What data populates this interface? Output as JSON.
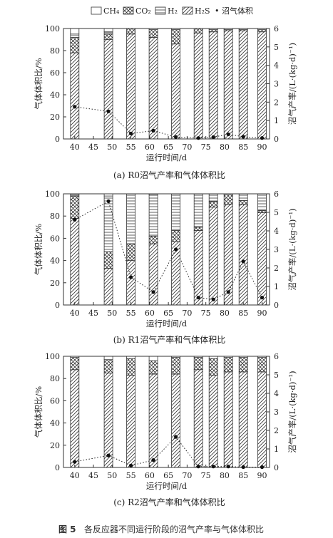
{
  "legend": {
    "items": [
      {
        "key": "ch4",
        "label": "CH₄",
        "pattern": "empty"
      },
      {
        "key": "co2",
        "label": "CO₂",
        "pattern": "cross"
      },
      {
        "key": "h2",
        "label": "H₂",
        "pattern": "horizontal"
      },
      {
        "key": "h2s",
        "label": "H₂S",
        "pattern": "diagonal"
      },
      {
        "key": "biogas",
        "label": "• 沼气体积",
        "pattern": "dot"
      }
    ]
  },
  "figure_caption": {
    "label": "图 5",
    "text": "各反应器不同运行阶段的沼气产率与气体体积比"
  },
  "chart_data": [
    {
      "type": "bar",
      "title": "(a) R0沼气产率和气体体积比",
      "xlabel": "运行时间/d",
      "ylabel": "气体体积比/%",
      "y2label": "沼气产率/(L·(kg·d)⁻¹)",
      "xlim": [
        37,
        92
      ],
      "ylim": [
        0,
        100
      ],
      "y2lim": [
        0,
        6
      ],
      "xticks": [
        40,
        45,
        50,
        55,
        60,
        65,
        70,
        75,
        80,
        85,
        90
      ],
      "yticks": [
        0,
        20,
        40,
        60,
        80,
        100
      ],
      "y2ticks": [
        0,
        1,
        2,
        3,
        4,
        5,
        6
      ],
      "x": [
        40,
        49,
        55,
        61,
        67,
        73,
        77,
        81,
        85,
        90
      ],
      "series": [
        {
          "key": "h2s",
          "values": [
            78,
            90,
            95,
            92,
            86,
            96,
            97,
            98,
            98,
            97
          ]
        },
        {
          "key": "co2",
          "values": [
            14,
            5,
            5,
            7,
            13,
            4,
            2,
            1,
            1,
            2
          ]
        },
        {
          "key": "h2",
          "values": [
            3,
            2,
            0,
            1,
            1,
            0,
            0,
            0,
            0,
            0
          ]
        },
        {
          "key": "ch4",
          "values": [
            5,
            3,
            0,
            0,
            0,
            0,
            1,
            1,
            1,
            1
          ]
        }
      ],
      "line": {
        "name": "沼气体积",
        "x": [
          40,
          49,
          55,
          61,
          67,
          73,
          77,
          81,
          85,
          90
        ],
        "values": [
          1.75,
          1.5,
          0.3,
          0.45,
          0.1,
          0.05,
          0.1,
          0.25,
          0.12,
          0.05
        ]
      }
    },
    {
      "type": "bar",
      "title": "(b) R1沼气产率和气体体积比",
      "xlabel": "运行时间/d",
      "ylabel": "气体体积比/%",
      "y2label": "沼气产率/(L·(kg·d)⁻¹)",
      "xlim": [
        37,
        92
      ],
      "ylim": [
        0,
        100
      ],
      "y2lim": [
        0,
        6
      ],
      "xticks": [
        40,
        45,
        50,
        55,
        60,
        65,
        70,
        75,
        80,
        85,
        90
      ],
      "yticks": [
        0,
        20,
        40,
        60,
        80,
        100
      ],
      "y2ticks": [
        0,
        1,
        2,
        3,
        4,
        5,
        6
      ],
      "x": [
        40,
        49,
        55,
        61,
        67,
        73,
        77,
        81,
        85,
        90
      ],
      "series": [
        {
          "key": "h2s",
          "values": [
            78,
            33,
            40,
            55,
            57,
            67,
            88,
            90,
            90,
            83
          ]
        },
        {
          "key": "co2",
          "values": [
            20,
            15,
            15,
            7,
            10,
            3,
            5,
            9,
            4,
            2
          ]
        },
        {
          "key": "h2",
          "values": [
            1,
            50,
            45,
            37,
            33,
            30,
            7,
            1,
            6,
            15
          ]
        },
        {
          "key": "ch4",
          "values": [
            1,
            2,
            0,
            1,
            0,
            0,
            0,
            0,
            0,
            0
          ]
        }
      ],
      "line": {
        "name": "沼气体积",
        "x": [
          40,
          49,
          55,
          61,
          67,
          73,
          77,
          81,
          85,
          90
        ],
        "values": [
          4.6,
          5.6,
          1.5,
          0.7,
          3.0,
          0.4,
          0.3,
          0.7,
          2.35,
          0.4
        ]
      }
    },
    {
      "type": "bar",
      "title": "(c) R2沼气产率和气体体积比",
      "xlabel": "运行时间/d",
      "ylabel": "气体体积比/%",
      "y2label": "沼气产率/(L·(kg·d)⁻¹)",
      "xlim": [
        37,
        92
      ],
      "ylim": [
        0,
        100
      ],
      "y2lim": [
        0,
        6
      ],
      "xticks": [
        40,
        45,
        50,
        55,
        60,
        65,
        70,
        75,
        80,
        85,
        90
      ],
      "yticks": [
        0,
        20,
        40,
        60,
        80,
        100
      ],
      "y2ticks": [
        0,
        1,
        2,
        3,
        4,
        5,
        6
      ],
      "x": [
        40,
        49,
        55,
        61,
        67,
        73,
        77,
        81,
        85,
        90
      ],
      "series": [
        {
          "key": "h2s",
          "values": [
            88,
            85,
            83,
            84,
            84,
            88,
            83,
            86,
            86,
            86
          ]
        },
        {
          "key": "co2",
          "values": [
            11,
            12,
            15,
            12,
            15,
            11,
            15,
            13,
            13,
            13
          ]
        },
        {
          "key": "h2",
          "values": [
            0,
            0,
            0,
            0,
            0,
            0,
            0,
            0,
            0,
            0
          ]
        },
        {
          "key": "ch4",
          "values": [
            1,
            3,
            2,
            4,
            1,
            1,
            2,
            1,
            1,
            1
          ]
        }
      ],
      "line": {
        "name": "沼气体积",
        "x": [
          40,
          49,
          55,
          61,
          67,
          73,
          77,
          81,
          85,
          90
        ],
        "values": [
          0.3,
          0.65,
          0.1,
          0.4,
          1.65,
          0.05,
          0.05,
          0.05,
          0.02,
          0.02
        ]
      }
    }
  ]
}
